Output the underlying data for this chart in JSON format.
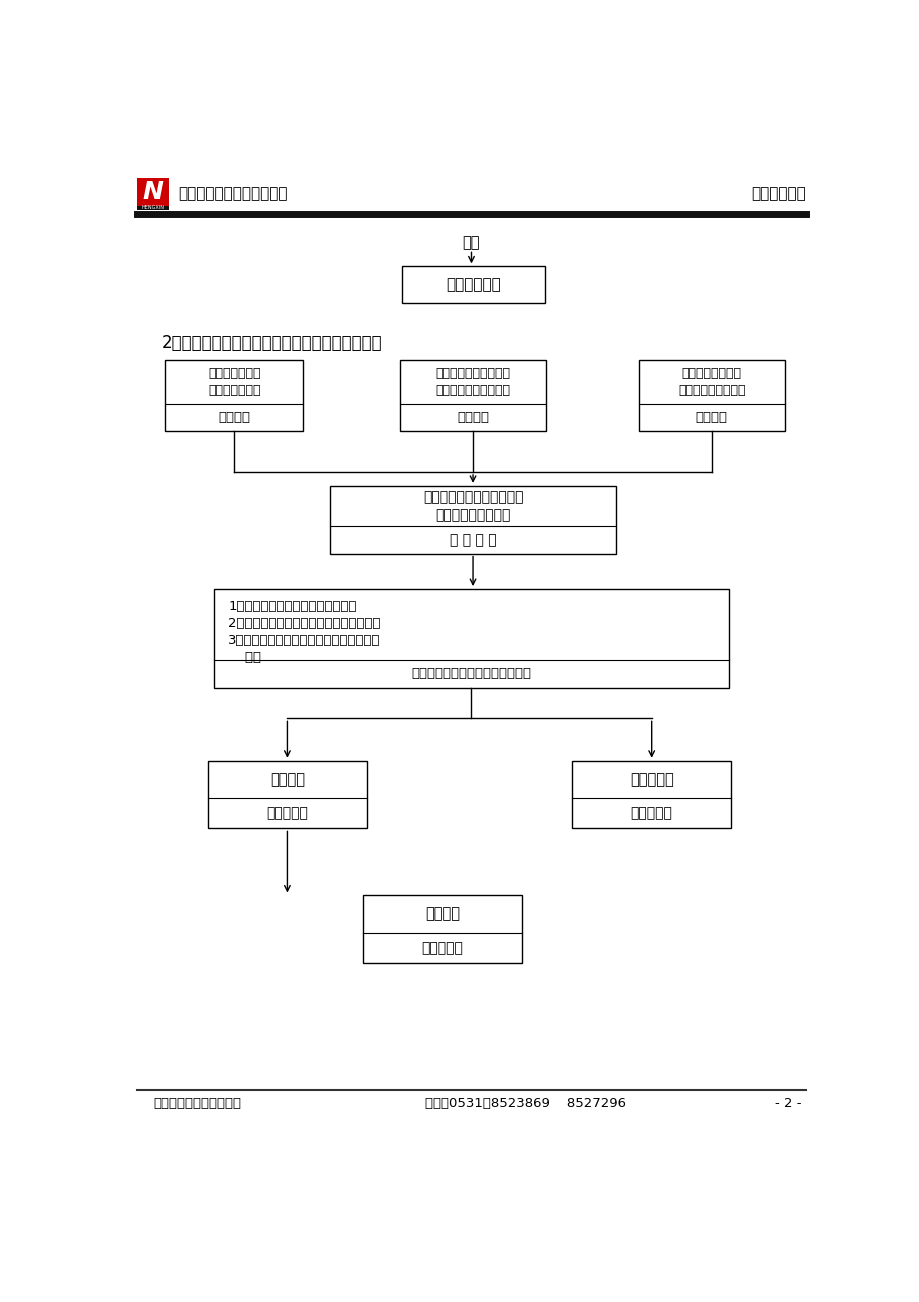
{
  "title_left": "山东恒信建设监理有限公司",
  "title_right": "监理实施细则",
  "footer_left": "地址：济南市和平路３号",
  "footer_mid": "电话：0531－8523869    8527296",
  "footer_right": "- 2 -",
  "section_title": "2、安装工程隐检、预检及分部分项工程验收程序",
  "bg_color": "#ffffff",
  "box_border_color": "#000000",
  "arrow_color": "#000000",
  "top_above_text": "合格",
  "top_box_label": "承包单位使用",
  "three_boxes": [
    {
      "top_text": "各项设备材料质\n量保证资料齐全",
      "bottom_text": "施工单位"
    },
    {
      "top_text": "隐、预检工程分部分项\n工程分别验收签认完成",
      "bottom_text": "施工单位"
    },
    {
      "top_text": "分部分项工程自检\n合格、隐蔽工程完成",
      "bottom_text": "施工单位"
    }
  ],
  "mid_box_top": "填报验申请表及隐验记录、\n检验批报项目监理部",
  "mid_box_bottom": "施 工 单 位",
  "big_box_lines": [
    "1、审核各项质量保证资料是否齐全",
    "2、检查隐、预验及分部分项工程是否完成",
    "3、检查检验批、分部、分项工程质量是否",
    "    合格"
  ],
  "big_box_bottom": "项目监理部各有关专业监理工程师",
  "left_box_top": "验收合格",
  "left_box_bottom": "监理工程师",
  "right_box_top": "验收不合格",
  "right_box_bottom": "监理工程师",
  "bot_box_top": "验收合格",
  "bot_box_bottom": "监理工程师"
}
